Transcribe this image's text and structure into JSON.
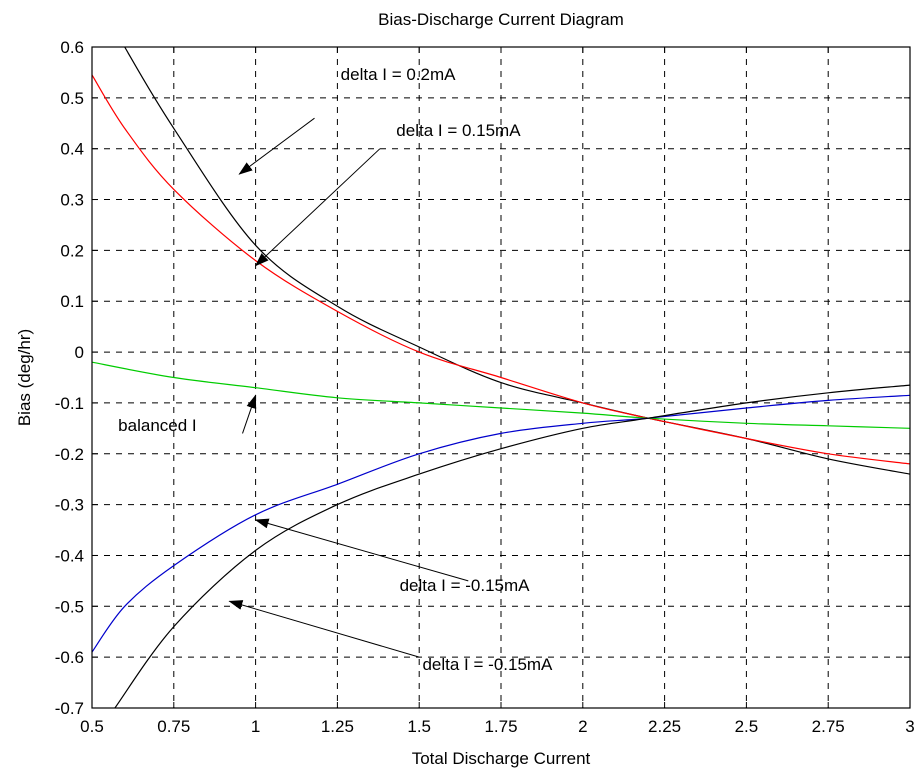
{
  "chart_data": {
    "type": "line",
    "title": "Bias-Discharge Current Diagram",
    "xlabel": "Total Discharge Current",
    "ylabel": "Bias (deg/hr)",
    "xlim": [
      0.5,
      3
    ],
    "ylim": [
      -0.7,
      0.6
    ],
    "grid": true,
    "x_ticks": [
      0.5,
      0.75,
      1,
      1.25,
      1.5,
      1.75,
      2,
      2.25,
      2.5,
      2.75,
      3
    ],
    "x_tick_labels": [
      "0.5",
      "0.75",
      "1",
      "1.25",
      "1.5",
      "1.75",
      "2",
      "2.25",
      "2.5",
      "2.75",
      "3"
    ],
    "y_ticks": [
      0.6,
      0.5,
      0.4,
      0.3,
      0.2,
      0.1,
      0,
      -0.1,
      -0.2,
      -0.3,
      -0.4,
      -0.5,
      -0.6,
      -0.7
    ],
    "y_tick_labels": [
      "0.6",
      "0.5",
      "0.4",
      "0.3",
      "0.2",
      "0.1",
      "0",
      "-0.1",
      "-0.2",
      "-0.3",
      "-0.4",
      "-0.5",
      "-0.6",
      "-0.7"
    ],
    "series": [
      {
        "color": "#000000",
        "x": [
          0.5,
          0.6,
          0.75,
          1.0,
          1.25,
          1.5,
          1.75,
          2.0,
          2.2,
          2.5,
          2.75,
          3.0
        ],
        "y": [
          0.72,
          0.6,
          0.44,
          0.21,
          0.09,
          0.01,
          -0.06,
          -0.1,
          -0.13,
          -0.17,
          -0.21,
          -0.24
        ]
      },
      {
        "color": "#ff0000",
        "x": [
          0.5,
          0.6,
          0.75,
          1.0,
          1.25,
          1.5,
          1.75,
          2.0,
          2.2,
          2.5,
          2.75,
          3.0
        ],
        "y": [
          0.545,
          0.44,
          0.32,
          0.18,
          0.08,
          0.0,
          -0.05,
          -0.1,
          -0.13,
          -0.17,
          -0.2,
          -0.22
        ]
      },
      {
        "color": "#00cc00",
        "x": [
          0.5,
          0.75,
          1.0,
          1.25,
          1.5,
          1.75,
          2.0,
          2.2,
          2.5,
          2.75,
          3.0
        ],
        "y": [
          -0.02,
          -0.05,
          -0.07,
          -0.09,
          -0.1,
          -0.11,
          -0.12,
          -0.13,
          -0.14,
          -0.145,
          -0.15
        ]
      },
      {
        "color": "#0000cc",
        "x": [
          0.5,
          0.6,
          0.75,
          1.0,
          1.25,
          1.5,
          1.75,
          2.0,
          2.2,
          2.5,
          2.75,
          3.0
        ],
        "y": [
          -0.59,
          -0.5,
          -0.42,
          -0.32,
          -0.26,
          -0.2,
          -0.16,
          -0.14,
          -0.13,
          -0.11,
          -0.095,
          -0.085
        ]
      },
      {
        "color": "#000000",
        "x": [
          0.57,
          0.75,
          1.0,
          1.25,
          1.5,
          1.75,
          2.0,
          2.2,
          2.5,
          2.75,
          3.0
        ],
        "y": [
          -0.7,
          -0.54,
          -0.39,
          -0.3,
          -0.24,
          -0.19,
          -0.15,
          -0.13,
          -0.1,
          -0.08,
          -0.065
        ]
      }
    ],
    "annotations": [
      {
        "text": "delta I = 0.2mA",
        "text_x": 1.26,
        "text_y": 0.535,
        "arrow_from": [
          1.18,
          0.46
        ],
        "arrow_to": [
          0.95,
          0.35
        ]
      },
      {
        "text": "delta I = 0.15mA",
        "text_x": 1.43,
        "text_y": 0.425,
        "arrow_from": [
          1.38,
          0.4
        ],
        "arrow_to": [
          1.0,
          0.17
        ]
      },
      {
        "text": "balanced I",
        "text_x": 0.58,
        "text_y": -0.155,
        "arrow_from": [
          0.96,
          -0.16
        ],
        "arrow_to": [
          1.0,
          -0.085
        ]
      },
      {
        "text": "delta I = -0.15mA",
        "text_x": 1.44,
        "text_y": -0.47,
        "arrow_from": [
          1.65,
          -0.45
        ],
        "arrow_to": [
          1.0,
          -0.33
        ]
      },
      {
        "text": "delta I = -0.15mA",
        "text_x": 1.51,
        "text_y": -0.625,
        "arrow_from": [
          1.5,
          -0.6
        ],
        "arrow_to": [
          0.92,
          -0.49
        ]
      }
    ]
  }
}
